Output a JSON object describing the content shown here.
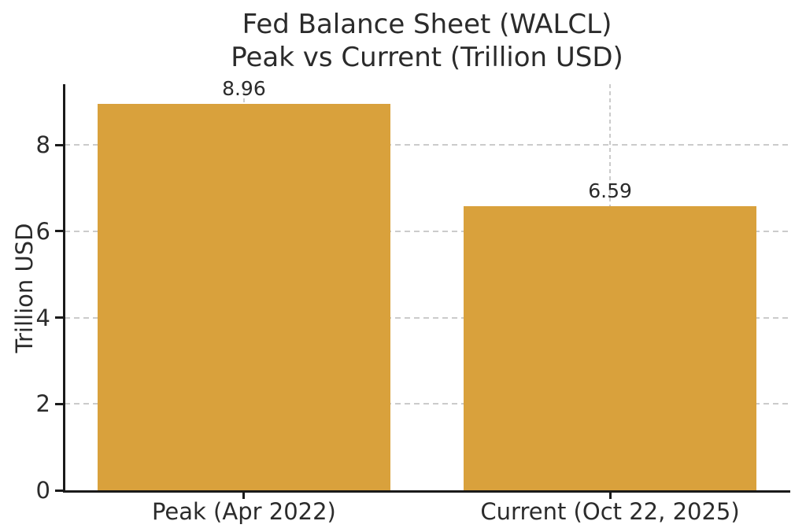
{
  "chart_data": {
    "type": "bar",
    "title_lines": [
      "Fed Balance Sheet (WALCL)",
      "Peak vs Current (Trillion USD)"
    ],
    "title": "Fed Balance Sheet (WALCL)\nPeak vs Current (Trillion USD)",
    "categories": [
      "Peak (Apr 2022)",
      "Current (Oct 22, 2025)"
    ],
    "values": [
      8.96,
      6.59
    ],
    "bar_labels": [
      "8.96",
      "6.59"
    ],
    "xlabel": "",
    "ylabel": "Trillion USD",
    "yticks": [
      0,
      2,
      4,
      6,
      8
    ],
    "ylim": [
      0,
      9.41
    ],
    "xlim": [
      -0.49,
      1.49
    ],
    "bar_width_data_units": 0.8,
    "grid": "dashed",
    "legend_position": "none",
    "colors": {
      "bar": "#D9A13C",
      "grid": "#CBCBCB",
      "axis": "#1A1A1A",
      "text": "#2B2B2B",
      "background": "#FFFFFF"
    }
  }
}
